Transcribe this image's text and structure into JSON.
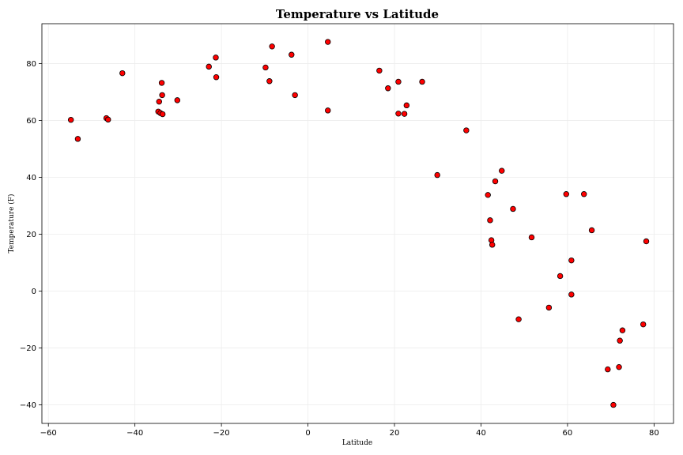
{
  "chart_data": {
    "type": "scatter",
    "title": "Temperature vs Latitude",
    "xlabel": "Latitude",
    "ylabel": "Temperature (F)",
    "xlim": [
      -61.5,
      84.5
    ],
    "ylim": [
      -46.5,
      94
    ],
    "xticks": [
      -60,
      -40,
      -20,
      0,
      20,
      40,
      60,
      80
    ],
    "yticks": [
      -40,
      -20,
      0,
      20,
      40,
      60,
      80
    ],
    "grid": true,
    "marker_color": "#ff0000",
    "marker_edge_color": "#000000",
    "points": [
      {
        "x": -54.8,
        "y": 60.2
      },
      {
        "x": -53.2,
        "y": 53.5
      },
      {
        "x": -46.6,
        "y": 60.8
      },
      {
        "x": -46.2,
        "y": 60.3
      },
      {
        "x": -42.9,
        "y": 76.6
      },
      {
        "x": -34.6,
        "y": 63.1
      },
      {
        "x": -34.4,
        "y": 66.6
      },
      {
        "x": -34.1,
        "y": 62.6
      },
      {
        "x": -33.8,
        "y": 73.2
      },
      {
        "x": -33.7,
        "y": 68.9
      },
      {
        "x": -33.6,
        "y": 62.2
      },
      {
        "x": -30.2,
        "y": 67.1
      },
      {
        "x": -22.9,
        "y": 78.9
      },
      {
        "x": -21.3,
        "y": 82.1
      },
      {
        "x": -21.2,
        "y": 75.2
      },
      {
        "x": -9.8,
        "y": 78.6
      },
      {
        "x": -8.9,
        "y": 73.8
      },
      {
        "x": -8.3,
        "y": 86.0
      },
      {
        "x": -3.8,
        "y": 83.1
      },
      {
        "x": -3.0,
        "y": 68.9
      },
      {
        "x": 4.6,
        "y": 87.6
      },
      {
        "x": 4.6,
        "y": 63.5
      },
      {
        "x": 16.5,
        "y": 77.5
      },
      {
        "x": 18.5,
        "y": 71.3
      },
      {
        "x": 20.9,
        "y": 73.6
      },
      {
        "x": 20.9,
        "y": 62.4
      },
      {
        "x": 22.3,
        "y": 62.3
      },
      {
        "x": 22.8,
        "y": 65.3
      },
      {
        "x": 26.4,
        "y": 73.6
      },
      {
        "x": 29.9,
        "y": 40.8
      },
      {
        "x": 36.6,
        "y": 56.5
      },
      {
        "x": 41.6,
        "y": 33.8
      },
      {
        "x": 42.1,
        "y": 24.9
      },
      {
        "x": 42.4,
        "y": 17.9
      },
      {
        "x": 42.6,
        "y": 16.3
      },
      {
        "x": 43.3,
        "y": 38.6
      },
      {
        "x": 44.8,
        "y": 42.3
      },
      {
        "x": 47.4,
        "y": 28.9
      },
      {
        "x": 48.7,
        "y": -9.9
      },
      {
        "x": 51.7,
        "y": 18.9
      },
      {
        "x": 55.7,
        "y": -5.8
      },
      {
        "x": 58.3,
        "y": 5.3
      },
      {
        "x": 59.7,
        "y": 34.1
      },
      {
        "x": 60.9,
        "y": 10.8
      },
      {
        "x": 60.9,
        "y": -1.2
      },
      {
        "x": 63.8,
        "y": 34.1
      },
      {
        "x": 65.6,
        "y": 21.4
      },
      {
        "x": 69.3,
        "y": -27.5
      },
      {
        "x": 70.6,
        "y": -40.0
      },
      {
        "x": 71.9,
        "y": -26.7
      },
      {
        "x": 72.1,
        "y": -17.4
      },
      {
        "x": 72.7,
        "y": -13.8
      },
      {
        "x": 77.5,
        "y": -11.7
      },
      {
        "x": 78.2,
        "y": 17.5
      }
    ]
  }
}
